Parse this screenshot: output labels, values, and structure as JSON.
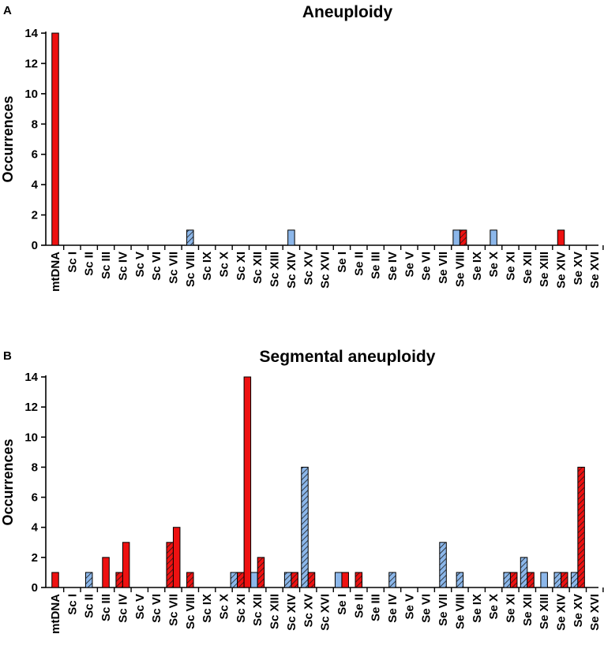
{
  "colors": {
    "red": "#ee1111",
    "blue": "#8cb7ea",
    "hatch": "#1a1a1a",
    "axis": "#000000"
  },
  "legend_note": "",
  "chart_data": [
    {
      "panel": "A",
      "type": "bar",
      "title": "Aneuploidy",
      "ylabel": "Occurrences",
      "xlabel": "",
      "ylim": [
        0,
        14
      ],
      "yticks": [
        "0",
        "2",
        "4",
        "6",
        "8",
        "10",
        "12",
        "14"
      ],
      "categories": [
        "mtDNA",
        "Sc I",
        "Sc II",
        "Sc III",
        "Sc IV",
        "Sc V",
        "Sc VI",
        "Sc VII",
        "Sc VIII",
        "Sc IX",
        "Sc X",
        "Sc XI",
        "Sc XII",
        "Sc XIII",
        "Sc XIV",
        "Sc XV",
        "Sc XVI",
        "Se I",
        "Se II",
        "Se III",
        "Se IV",
        "Se V",
        "Se VI",
        "Se VII",
        "Se VIII",
        "Se IX",
        "Se X",
        "Se XI",
        "Se XII",
        "Se XIII",
        "Se XIV",
        "Se XV",
        "Se XVI"
      ],
      "series": [
        {
          "name": "blue solid",
          "color": "blue",
          "hatched": false,
          "values": [
            0,
            0,
            0,
            0,
            0,
            0,
            0,
            0,
            0,
            0,
            0,
            0,
            0,
            0,
            1,
            0,
            0,
            0,
            0,
            0,
            0,
            0,
            0,
            0,
            1,
            0,
            1,
            0,
            0,
            0,
            0,
            0,
            0
          ]
        },
        {
          "name": "blue hatched",
          "color": "blue",
          "hatched": true,
          "values": [
            0,
            0,
            0,
            0,
            0,
            0,
            0,
            0,
            1,
            0,
            0,
            0,
            0,
            0,
            0,
            0,
            0,
            0,
            0,
            0,
            0,
            0,
            0,
            0,
            0,
            0,
            0,
            0,
            0,
            0,
            0,
            0,
            0
          ]
        },
        {
          "name": "red hatched",
          "color": "red",
          "hatched": true,
          "values": [
            0,
            0,
            0,
            0,
            0,
            0,
            0,
            0,
            0,
            0,
            0,
            0,
            0,
            0,
            0,
            0,
            0,
            0,
            0,
            0,
            0,
            0,
            0,
            0,
            1,
            0,
            0,
            0,
            0,
            0,
            0,
            0,
            0
          ]
        },
        {
          "name": "red solid",
          "color": "red",
          "hatched": false,
          "values": [
            14,
            0,
            0,
            0,
            0,
            0,
            0,
            0,
            0,
            0,
            0,
            0,
            0,
            0,
            0,
            0,
            0,
            0,
            0,
            0,
            0,
            0,
            0,
            0,
            0,
            0,
            0,
            0,
            0,
            0,
            1,
            0,
            0
          ]
        }
      ]
    },
    {
      "panel": "B",
      "type": "bar",
      "title": "Segmental aneuploidy",
      "ylabel": "Occurrences",
      "xlabel": "",
      "ylim": [
        0,
        14
      ],
      "yticks": [
        "0",
        "2",
        "4",
        "6",
        "8",
        "10",
        "12",
        "14"
      ],
      "categories": [
        "mtDNA",
        "Sc I",
        "Sc II",
        "Sc III",
        "Sc IV",
        "Sc V",
        "Sc VI",
        "Sc VII",
        "Sc VIII",
        "Sc IX",
        "Sc X",
        "Sc XI",
        "Sc XII",
        "Sc XIII",
        "Sc XIV",
        "Sc XV",
        "Sc XVI",
        "Se I",
        "Se II",
        "Se III",
        "Se IV",
        "Se V",
        "Se VI",
        "Se VII",
        "Se VIII",
        "Se IX",
        "Se X",
        "Se XI",
        "Se XII",
        "Se XIII",
        "Se XIV",
        "Se XV",
        "Se XVI"
      ],
      "series": [
        {
          "name": "blue solid",
          "color": "blue",
          "hatched": false,
          "values": [
            0,
            0,
            0,
            0,
            0,
            0,
            0,
            0,
            0,
            0,
            0,
            0,
            1,
            0,
            0,
            0,
            0,
            1,
            0,
            0,
            0,
            0,
            0,
            0,
            0,
            0,
            0,
            0,
            0,
            1,
            0,
            0,
            0
          ]
        },
        {
          "name": "blue hatched",
          "color": "blue",
          "hatched": true,
          "values": [
            0,
            0,
            1,
            0,
            0,
            0,
            0,
            0,
            0,
            0,
            0,
            1,
            0,
            0,
            1,
            8,
            0,
            0,
            0,
            0,
            1,
            0,
            0,
            3,
            1,
            0,
            0,
            1,
            2,
            0,
            1,
            1,
            0
          ]
        },
        {
          "name": "red hatched",
          "color": "red",
          "hatched": true,
          "values": [
            0,
            0,
            0,
            0,
            1,
            0,
            0,
            3,
            1,
            0,
            0,
            1,
            2,
            0,
            1,
            1,
            0,
            0,
            1,
            0,
            0,
            0,
            0,
            0,
            0,
            0,
            0,
            1,
            1,
            0,
            1,
            8,
            0
          ]
        },
        {
          "name": "red solid",
          "color": "red",
          "hatched": false,
          "values": [
            1,
            0,
            0,
            2,
            3,
            0,
            0,
            4,
            0,
            0,
            0,
            14,
            0,
            0,
            0,
            0,
            0,
            1,
            0,
            0,
            0,
            0,
            0,
            0,
            0,
            0,
            0,
            0,
            0,
            0,
            0,
            0,
            0
          ]
        }
      ]
    }
  ]
}
